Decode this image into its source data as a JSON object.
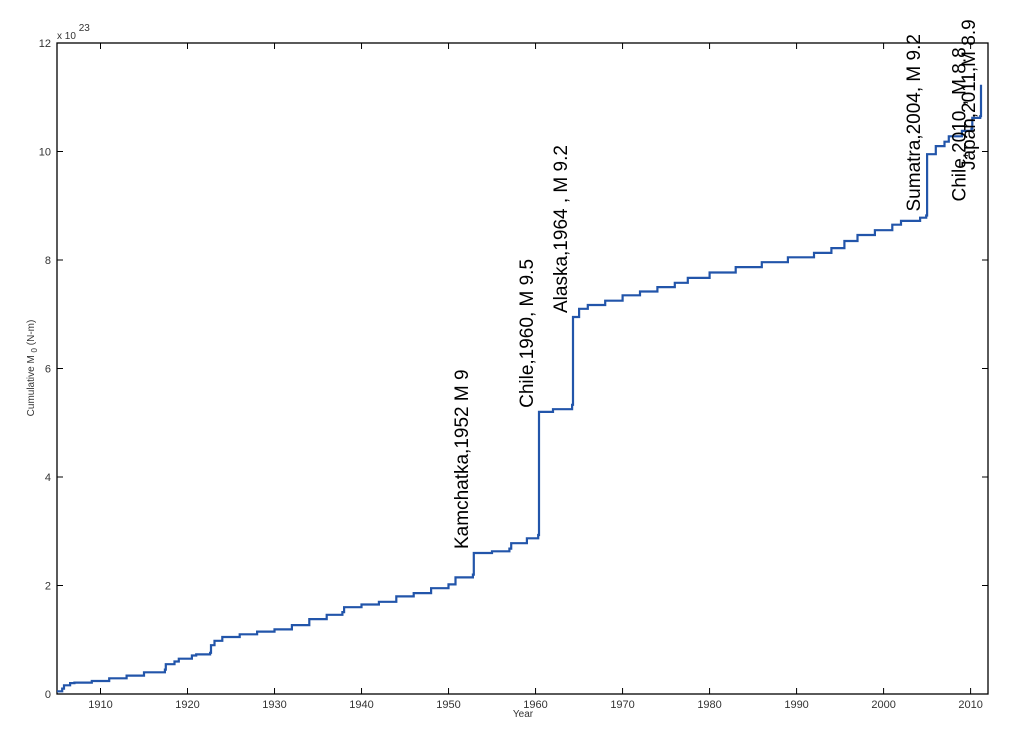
{
  "chart_data": {
    "type": "line",
    "title": "",
    "xlabel": "Year",
    "ylabel_prefix": "Cumulative M",
    "ylabel_sub": "0",
    "ylabel_suffix": " (N-m)",
    "y_multiplier_text": "x 10",
    "y_multiplier_exp": "23",
    "xlim": [
      1905,
      2012
    ],
    "ylim": [
      0,
      12
    ],
    "xticks": [
      1910,
      1920,
      1930,
      1940,
      1950,
      1960,
      1970,
      1980,
      1990,
      2000,
      2010
    ],
    "yticks": [
      0,
      2,
      4,
      6,
      8,
      10,
      12
    ],
    "xtick_labels": [
      "1910",
      "1920",
      "1930",
      "1940",
      "1950",
      "1960",
      "1970",
      "1980",
      "1990",
      "2000",
      "2010"
    ],
    "ytick_labels": [
      "0",
      "2",
      "4",
      "6",
      "8",
      "10",
      "12"
    ],
    "grid": false,
    "line_color": "#2255aa",
    "series": [
      {
        "x": [
          1905,
          1905.6,
          1905.8,
          1906.5,
          1907,
          1909,
          1911,
          1913,
          1915,
          1917.4,
          1917.5,
          1918.5,
          1919,
          1920.5,
          1921,
          1922.6,
          1922.7,
          1923.1,
          1924,
          1926,
          1928,
          1930,
          1932,
          1934,
          1936,
          1937.8,
          1938,
          1940,
          1942,
          1944,
          1946,
          1948,
          1950,
          1950.8,
          1952.8,
          1952.9,
          1955,
          1957,
          1957.2,
          1959,
          1960.3,
          1960.4,
          1962,
          1964.2,
          1964.3,
          1965,
          1966,
          1968,
          1970,
          1972,
          1974,
          1976,
          1977.5,
          1980,
          1983,
          1986,
          1989,
          1992,
          1994,
          1995.5,
          1997,
          1999,
          2001,
          2002,
          2004.2,
          2004.9,
          2005.0,
          2006,
          2007,
          2007.5,
          2009,
          2010.1,
          2010.2,
          2011.1,
          2011.2
        ],
        "y": [
          0.05,
          0.1,
          0.16,
          0.2,
          0.21,
          0.24,
          0.29,
          0.34,
          0.4,
          0.45,
          0.55,
          0.6,
          0.65,
          0.71,
          0.73,
          0.76,
          0.9,
          0.98,
          1.05,
          1.1,
          1.15,
          1.19,
          1.27,
          1.38,
          1.46,
          1.51,
          1.6,
          1.65,
          1.7,
          1.8,
          1.86,
          1.95,
          2.02,
          2.15,
          2.2,
          2.6,
          2.63,
          2.68,
          2.78,
          2.87,
          2.93,
          5.2,
          5.25,
          5.33,
          6.95,
          7.1,
          7.17,
          7.25,
          7.35,
          7.42,
          7.5,
          7.58,
          7.67,
          7.77,
          7.87,
          7.96,
          8.05,
          8.13,
          8.22,
          8.35,
          8.46,
          8.55,
          8.65,
          8.72,
          8.78,
          8.82,
          9.95,
          10.1,
          10.18,
          10.28,
          10.38,
          10.42,
          10.62,
          10.65,
          11.23
        ]
      }
    ],
    "annotations": [
      {
        "text": "Kamchatka,1952 M 9",
        "year": 1952.9
      },
      {
        "text": "Chile,1960, M 9.5",
        "year": 1960.4
      },
      {
        "text": "Alaska,1964 , M 9.2",
        "year": 1964.3
      },
      {
        "text": "Sumatra,2004, M 9.2",
        "year": 2004.9
      },
      {
        "text": "Chile,2010 , M  8.8",
        "year": 2010.1
      },
      {
        "text": "Japan,2011,M 8.9",
        "year": 2011.2
      }
    ]
  }
}
